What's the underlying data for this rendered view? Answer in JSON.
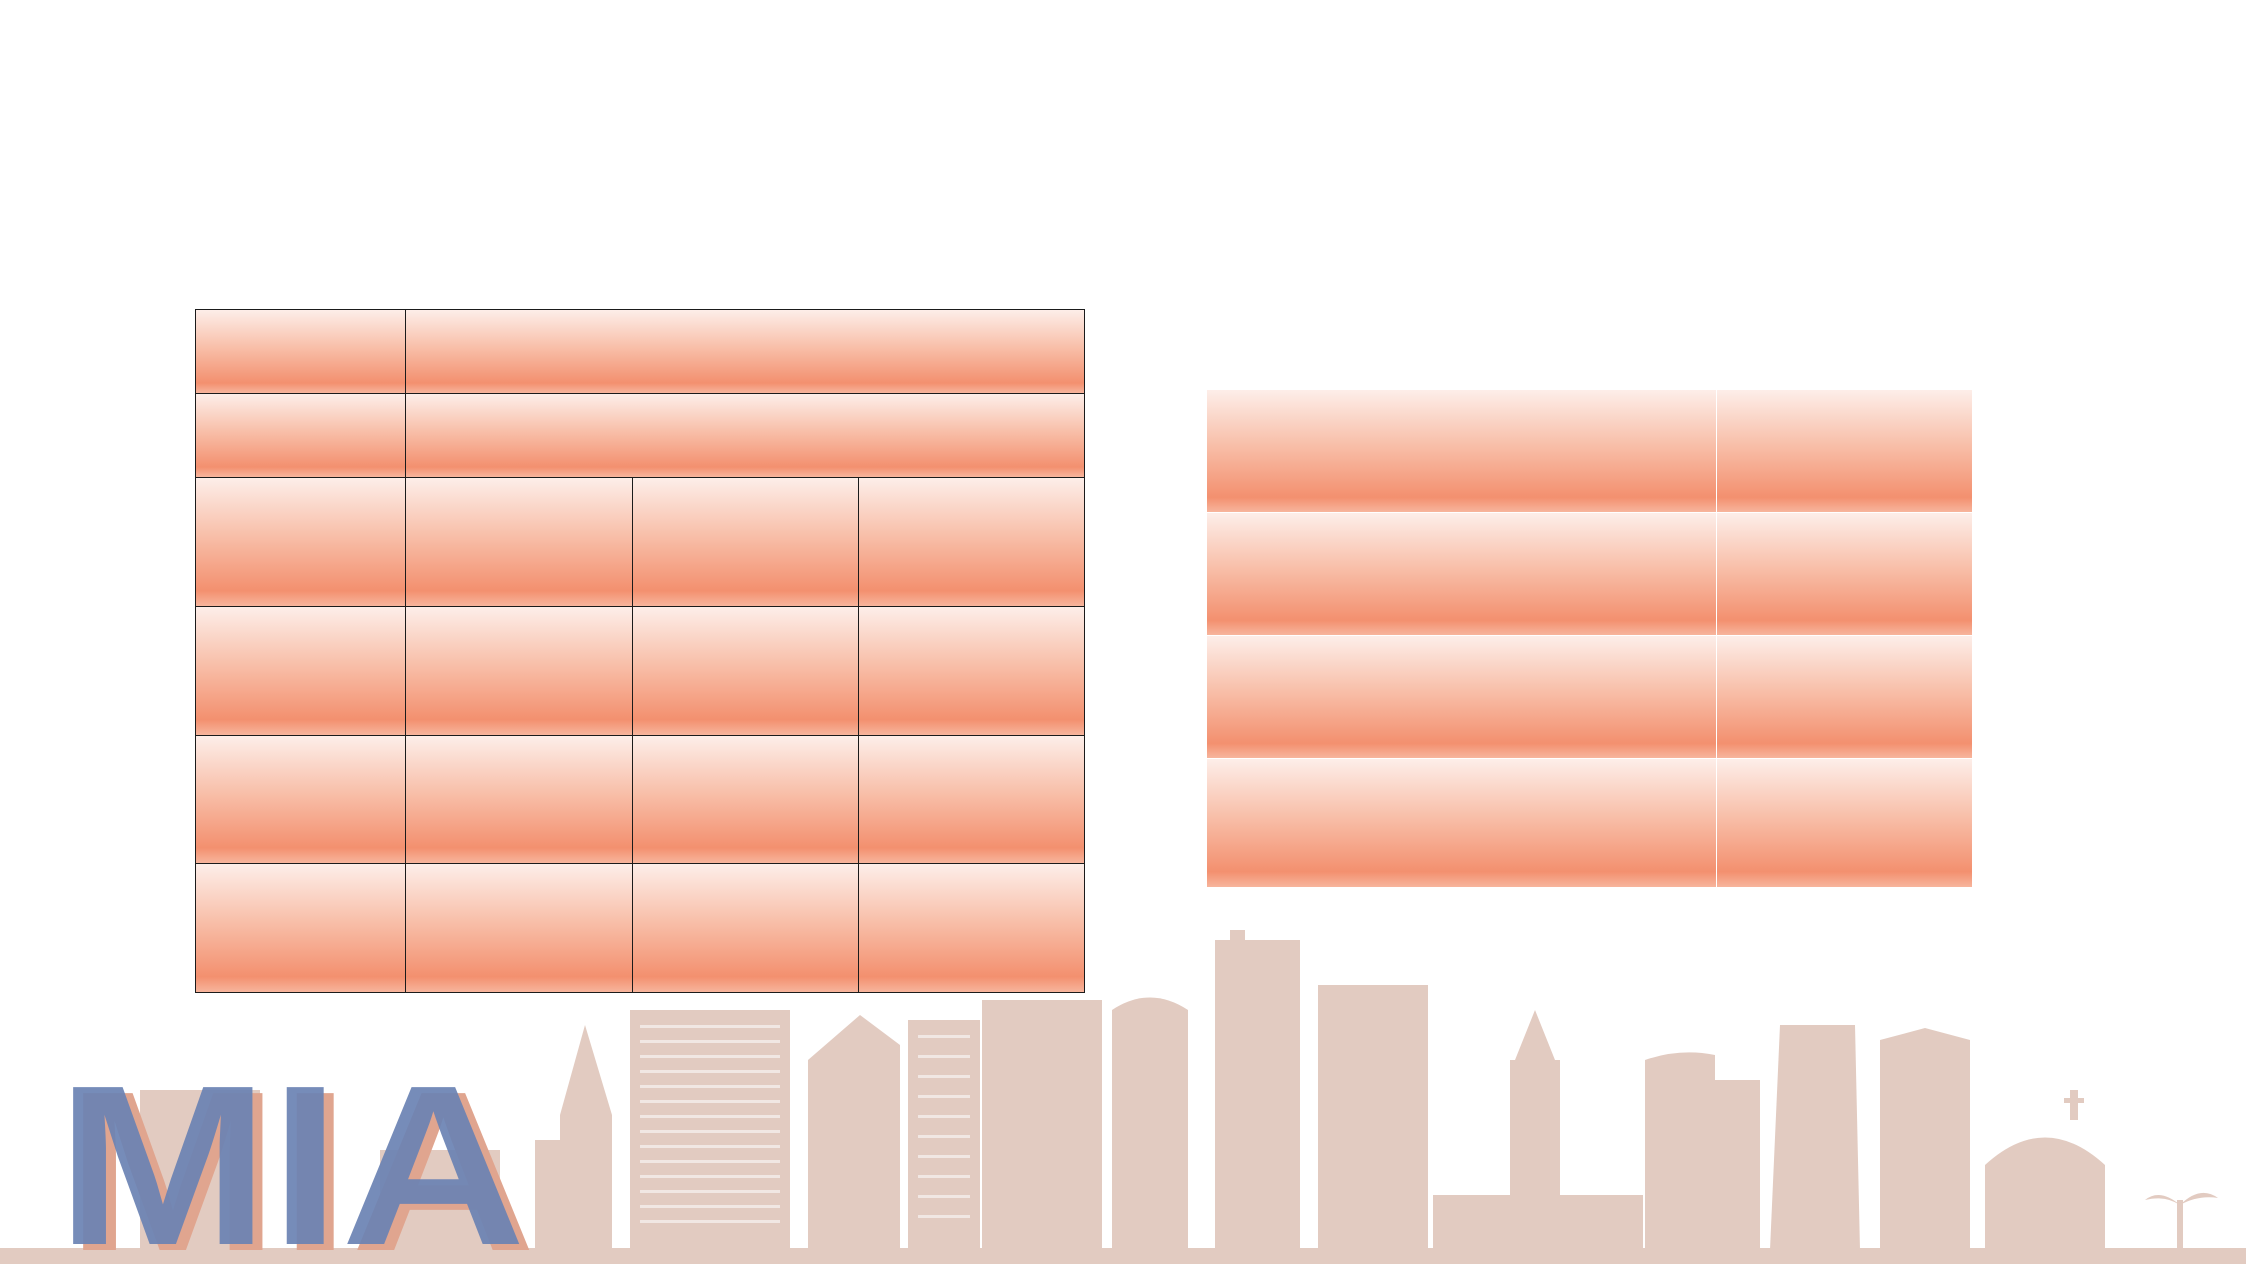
{
  "slide": {
    "background": "#ffffff",
    "accent": "#f3906f",
    "skyline_color": "#e2cbc1",
    "logo": {
      "text": "MIA",
      "front_color": "#6a82b3",
      "shadow_color": "#e0a58f"
    }
  },
  "table_left": {
    "rows": [
      [
        "",
        ""
      ],
      [
        "",
        ""
      ],
      [
        "",
        "",
        "",
        ""
      ],
      [
        "",
        "",
        "",
        ""
      ],
      [
        "",
        "",
        "",
        ""
      ],
      [
        "",
        "",
        "",
        ""
      ]
    ]
  },
  "table_right": {
    "rows": [
      [
        "",
        ""
      ],
      [
        "",
        ""
      ],
      [
        "",
        ""
      ],
      [
        "",
        ""
      ]
    ]
  }
}
